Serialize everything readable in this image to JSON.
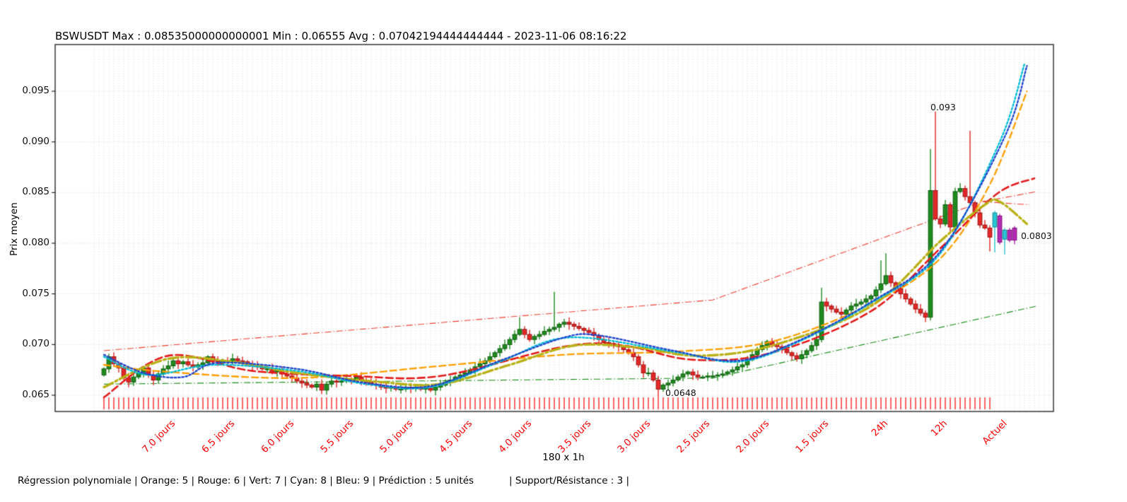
{
  "header": {
    "title": "BSWUSDT Max : 0.08535000000000001 Min : 0.06555 Avg : 0.07042194444444444 - 2023-11-06 08:16:22"
  },
  "footer": {
    "regression_info": "Régression polynomiale | Orange: 5 | Rouge: 6 | Vert: 7 | Cyan: 8 | Bleu: 9 | Prédiction : 5 unités",
    "support_resistance_info": "| Support/Résistance : 3 |"
  },
  "chart_data": {
    "type": "candlestick",
    "symbol": "BSWUSDT",
    "max_shown": "0.08535000000000001",
    "min_shown": "0.06555",
    "avg_shown": "0.07042194444444444",
    "timestamp_shown": "2023-11-06 08:16:22",
    "xlabel": "180 x 1h",
    "ylabel": "Prix moyen",
    "num_candles": 180,
    "interval": "1h",
    "grid": true,
    "ylim": [
      0.0634,
      0.0996
    ],
    "y_ticks": {
      "values": [
        0.065,
        0.07,
        0.075,
        0.08,
        0.085,
        0.09,
        0.095
      ],
      "labels": [
        "0.065",
        "0.070",
        "0.075",
        "0.080",
        "0.085",
        "0.090",
        "0.095"
      ]
    },
    "x_ticks": {
      "candle_indices": [
        11,
        23,
        35,
        47,
        59,
        71,
        83,
        95,
        107,
        119,
        131,
        143,
        155,
        167,
        179
      ],
      "labels": [
        "7.0 jours",
        "6.5 jours",
        "6.0 jours",
        "5.5 jours",
        "5.0 jours",
        "4.5 jours",
        "4.0 jours",
        "3.5 jours",
        "3.0 jours",
        "2.5 jours",
        "2.0 jours",
        "1.5 jours",
        "24h",
        "12h",
        "Actuel"
      ]
    },
    "first_open": 0.067,
    "closes": [
      0.0676,
      0.0688,
      0.0681,
      0.0677,
      0.0667,
      0.0663,
      0.0668,
      0.0672,
      0.0677,
      0.067,
      0.0665,
      0.0671,
      0.0676,
      0.0679,
      0.0684,
      0.0681,
      0.0683,
      0.068,
      0.0678,
      0.068,
      0.0682,
      0.0688,
      0.0684,
      0.0683,
      0.0684,
      0.0683,
      0.0686,
      0.0684,
      0.0683,
      0.0681,
      0.0679,
      0.0678,
      0.0676,
      0.0676,
      0.0673,
      0.0674,
      0.0671,
      0.0669,
      0.0667,
      0.0664,
      0.0662,
      0.066,
      0.0658,
      0.0661,
      0.0655,
      0.0661,
      0.0664,
      0.0663,
      0.0664,
      0.0666,
      0.0665,
      0.0668,
      0.0665,
      0.0663,
      0.0661,
      0.066,
      0.0658,
      0.0657,
      0.0658,
      0.0656,
      0.0656,
      0.0658,
      0.0657,
      0.0658,
      0.0656,
      0.0657,
      0.0655,
      0.0658,
      0.066,
      0.0663,
      0.0665,
      0.0668,
      0.067,
      0.0672,
      0.0675,
      0.0678,
      0.0681,
      0.0684,
      0.0688,
      0.0692,
      0.0696,
      0.07,
      0.0705,
      0.071,
      0.0715,
      0.071,
      0.0705,
      0.0708,
      0.071,
      0.0713,
      0.0715,
      0.0717,
      0.072,
      0.0722,
      0.072,
      0.0718,
      0.0716,
      0.0714,
      0.0712,
      0.0709,
      0.0705,
      0.0702,
      0.0701,
      0.0699,
      0.0698,
      0.0695,
      0.0692,
      0.0688,
      0.068,
      0.0672,
      0.0672,
      0.0665,
      0.0656,
      0.066,
      0.0662,
      0.0665,
      0.0668,
      0.0671,
      0.0673,
      0.067,
      0.0668,
      0.0668,
      0.0669,
      0.0669,
      0.067,
      0.0671,
      0.0673,
      0.0675,
      0.0678,
      0.068,
      0.0685,
      0.069,
      0.0695,
      0.0699,
      0.0703,
      0.07,
      0.0698,
      0.0695,
      0.0692,
      0.0689,
      0.0686,
      0.069,
      0.0694,
      0.0699,
      0.0705,
      0.0742,
      0.0738,
      0.0735,
      0.0732,
      0.073,
      0.0734,
      0.0738,
      0.074,
      0.0742,
      0.0745,
      0.0748,
      0.0754,
      0.076,
      0.0768,
      0.0761,
      0.0755,
      0.075,
      0.0745,
      0.074,
      0.0735,
      0.0731,
      0.0727,
      0.0852,
      0.0824,
      0.0819,
      0.0838,
      0.0816,
      0.0851,
      0.0854,
      0.0846,
      0.084,
      0.083,
      0.0818,
      0.0815,
      0.0806
    ],
    "wick_overrides": {
      "44": {
        "low": 0.0651
      },
      "62": {
        "low": 0.0652
      },
      "66": {
        "low": 0.0653
      },
      "84": {
        "high": 0.0727
      },
      "91": {
        "high": 0.0752
      },
      "112": {
        "low": 0.0648
      },
      "145": {
        "high": 0.0756
      },
      "157": {
        "high": 0.0783
      },
      "158": {
        "high": 0.079
      },
      "167": {
        "high": 0.0893
      },
      "168": {
        "high": 0.093
      },
      "175": {
        "high": 0.0911
      },
      "179": {
        "low": 0.0792
      }
    },
    "prediction_candles": [
      {
        "color": "cyan",
        "open": 0.083,
        "high": 0.0832,
        "low": 0.0791,
        "close": 0.0816
      },
      {
        "color": "magenta",
        "open": 0.0827,
        "high": 0.0829,
        "low": 0.0799,
        "close": 0.0801
      },
      {
        "color": "cyan",
        "open": 0.0813,
        "high": 0.0815,
        "low": 0.0789,
        "close": 0.0804
      },
      {
        "color": "magenta",
        "open": 0.0813,
        "high": 0.0815,
        "low": 0.0801,
        "close": 0.0803
      },
      {
        "color": "magenta",
        "open": 0.0815,
        "high": 0.0817,
        "low": 0.0799,
        "close": 0.0803
      }
    ],
    "regression_curves": [
      {
        "name": "orange",
        "degree": 5,
        "color": "#ff9d00",
        "dash": [
          9,
          5
        ],
        "width": 2.3,
        "points": [
          [
            0,
            0.068
          ],
          [
            13,
            0.0673
          ],
          [
            39,
            0.0667
          ],
          [
            66,
            0.0678
          ],
          [
            93,
            0.069
          ],
          [
            115,
            0.0693
          ],
          [
            135,
            0.0703
          ],
          [
            155,
            0.074
          ],
          [
            169,
            0.0785
          ],
          [
            179,
            0.0858
          ],
          [
            186.5,
            0.095
          ]
        ]
      },
      {
        "name": "rouge",
        "degree": 6,
        "color": "#e31a1a",
        "dash": [
          10,
          5
        ],
        "width": 2.6,
        "points": [
          [
            0,
            0.0648
          ],
          [
            13,
            0.0689
          ],
          [
            30,
            0.0674
          ],
          [
            50,
            0.0669
          ],
          [
            68,
            0.0669
          ],
          [
            93,
            0.0698
          ],
          [
            105,
            0.0699
          ],
          [
            119,
            0.0685
          ],
          [
            135,
            0.0692
          ],
          [
            155,
            0.0733
          ],
          [
            169,
            0.0795
          ],
          [
            180.5,
            0.0849
          ],
          [
            188,
            0.0864
          ]
        ]
      },
      {
        "name": "vert",
        "degree": 7,
        "color": "#b9b117",
        "dash": [
          14,
          4,
          3,
          4
        ],
        "width": 3.4,
        "points": [
          [
            0,
            0.0658
          ],
          [
            13,
            0.0686
          ],
          [
            26,
            0.0683
          ],
          [
            39,
            0.0672
          ],
          [
            56,
            0.0663
          ],
          [
            68,
            0.0661
          ],
          [
            82,
            0.068
          ],
          [
            95,
            0.0699
          ],
          [
            108,
            0.0697
          ],
          [
            120,
            0.0689
          ],
          [
            135,
            0.0699
          ],
          [
            155,
            0.0738
          ],
          [
            169,
            0.0802
          ],
          [
            178,
            0.0838
          ],
          [
            181,
            0.0841
          ],
          [
            186.5,
            0.0819
          ]
        ]
      },
      {
        "name": "cyan",
        "degree": 8,
        "color": "#00bcd4",
        "dash": [
          2.5,
          2.8
        ],
        "width": 2.4,
        "points": [
          [
            0,
            0.0688
          ],
          [
            9,
            0.067
          ],
          [
            22,
            0.068
          ],
          [
            39,
            0.0674
          ],
          [
            53,
            0.0661
          ],
          [
            66,
            0.0658
          ],
          [
            80,
            0.0683
          ],
          [
            94,
            0.0707
          ],
          [
            115,
            0.0693
          ],
          [
            128,
            0.0683
          ],
          [
            140,
            0.0702
          ],
          [
            155,
            0.0741
          ],
          [
            169,
            0.079
          ],
          [
            181,
            0.09
          ],
          [
            186,
            0.0977
          ]
        ]
      },
      {
        "name": "bleu",
        "degree": 9,
        "color": "#2146cc",
        "dash": [
          2.5,
          2.8
        ],
        "width": 2.4,
        "points": [
          [
            0,
            0.069
          ],
          [
            8,
            0.0672
          ],
          [
            16,
            0.0668
          ],
          [
            23,
            0.0682
          ],
          [
            39,
            0.0676
          ],
          [
            53,
            0.0662
          ],
          [
            66,
            0.0659
          ],
          [
            80,
            0.0684
          ],
          [
            93,
            0.0707
          ],
          [
            100,
            0.0709
          ],
          [
            115,
            0.0694
          ],
          [
            128,
            0.0684
          ],
          [
            140,
            0.0703
          ],
          [
            155,
            0.0742
          ],
          [
            169,
            0.0792
          ],
          [
            182,
            0.0905
          ],
          [
            186.5,
            0.0975
          ]
        ]
      }
    ],
    "support_resistance_lines": [
      {
        "name": "resistance",
        "color": "#f23b2e",
        "points": [
          [
            0,
            0.0694
          ],
          [
            123,
            0.0744
          ],
          [
            177.5,
            0.0841
          ],
          [
            188.5,
            0.0851
          ]
        ]
      },
      {
        "name": "resistance-fork",
        "color": "#f23b2e",
        "points": [
          [
            177.5,
            0.0841
          ],
          [
            187,
            0.0838
          ]
        ]
      },
      {
        "name": "support",
        "color": "#128b12",
        "points": [
          [
            0,
            0.0661
          ],
          [
            123,
            0.0667
          ],
          [
            188.5,
            0.0738
          ]
        ]
      }
    ],
    "annotations": [
      {
        "text": "0.093",
        "candle": 168,
        "value": 0.093,
        "dx": -7
      },
      {
        "text": "0.0648",
        "candle": 112,
        "value": 0.0648,
        "dx": 10
      },
      {
        "text": "0.0803",
        "candle": 184,
        "value": 0.0803,
        "dx": 9
      }
    ],
    "colors": {
      "up": "#1f8b1f",
      "up_edge": "#0d5c0d",
      "down": "#e32726",
      "down_edge": "#9c1414",
      "prediction_cyan": "#29c5d4",
      "prediction_cyan_edge": "#0e8a96",
      "prediction_magenta": "#b52ab5",
      "prediction_magenta_edge": "#7d0f7d",
      "grid": "#cdcdcd",
      "frame": "#000000",
      "minor_tick_red": "#ff0000",
      "x_tick_label_red": "#ff0000"
    }
  }
}
